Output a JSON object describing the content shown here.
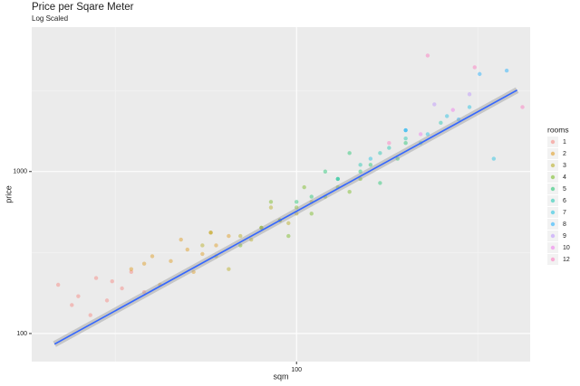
{
  "chart_data": {
    "type": "scatter",
    "title": "Price per Sqare Meter",
    "subtitle": "Log Scaled",
    "x_label": "sqm",
    "y_label": "price",
    "log_x": true,
    "log_y": true,
    "grid": true,
    "xlim": [
      18.6,
      441
    ],
    "ylim": [
      67.1,
      7790
    ],
    "xticks": [
      100
    ],
    "yticks": [
      100,
      1000
    ],
    "legend_title": "rooms",
    "legend_position": "right",
    "series": [
      {
        "name": "1",
        "color": "#F8766D",
        "x": [
          22,
          25,
          28,
          30,
          33,
          35,
          38,
          27,
          24,
          31
        ],
        "y": [
          200,
          170,
          220,
          160,
          190,
          240,
          180,
          130,
          150,
          210
        ]
      },
      {
        "name": "2",
        "color": "#DB8E00",
        "x": [
          35,
          40,
          45,
          50,
          55,
          60,
          42,
          48,
          65,
          38,
          52,
          58
        ],
        "y": [
          250,
          300,
          280,
          330,
          310,
          350,
          200,
          380,
          400,
          270,
          240,
          420
        ]
      },
      {
        "name": "3",
        "color": "#AEA200",
        "x": [
          55,
          60,
          70,
          80,
          90,
          100,
          65,
          75,
          85,
          95,
          110,
          58
        ],
        "y": [
          350,
          300,
          400,
          450,
          500,
          550,
          250,
          380,
          600,
          480,
          650,
          420
        ]
      },
      {
        "name": "4",
        "color": "#64B200",
        "x": [
          70,
          80,
          90,
          100,
          110,
          120,
          130,
          140,
          150,
          85,
          95,
          105
        ],
        "y": [
          350,
          450,
          500,
          600,
          550,
          700,
          800,
          750,
          900,
          650,
          400,
          800
        ]
      },
      {
        "name": "5",
        "color": "#00BD5C",
        "x": [
          100,
          110,
          130,
          150,
          170,
          190,
          120,
          140,
          160,
          200
        ],
        "y": [
          650,
          700,
          900,
          1000,
          850,
          1200,
          1000,
          1300,
          1100,
          1500
        ]
      },
      {
        "name": "6",
        "color": "#00C1A7",
        "x": [
          130,
          150,
          180,
          200,
          220,
          250,
          170
        ],
        "y": [
          900,
          1100,
          1400,
          1600,
          1500,
          2000,
          1300
        ]
      },
      {
        "name": "7",
        "color": "#00BADE",
        "x": [
          160,
          200,
          230,
          260,
          300,
          350
        ],
        "y": [
          1200,
          1800,
          1700,
          2200,
          2500,
          1200
        ]
      },
      {
        "name": "8",
        "color": "#00A6FF",
        "x": [
          200,
          280,
          320,
          380
        ],
        "y": [
          1800,
          2100,
          4000,
          4200
        ]
      },
      {
        "name": "9",
        "color": "#B385FF",
        "x": [
          240,
          300
        ],
        "y": [
          2600,
          3000
        ]
      },
      {
        "name": "10",
        "color": "#EF67EB",
        "x": [
          220,
          270
        ],
        "y": [
          1700,
          2400
        ]
      },
      {
        "name": "12",
        "color": "#FF63B6",
        "x": [
          180,
          230,
          310,
          420
        ],
        "y": [
          1500,
          5200,
          4400,
          2500
        ]
      }
    ],
    "trend": {
      "color": "#3366FF",
      "x": [
        21.5,
        406
      ],
      "y": [
        86,
        3180
      ]
    }
  }
}
